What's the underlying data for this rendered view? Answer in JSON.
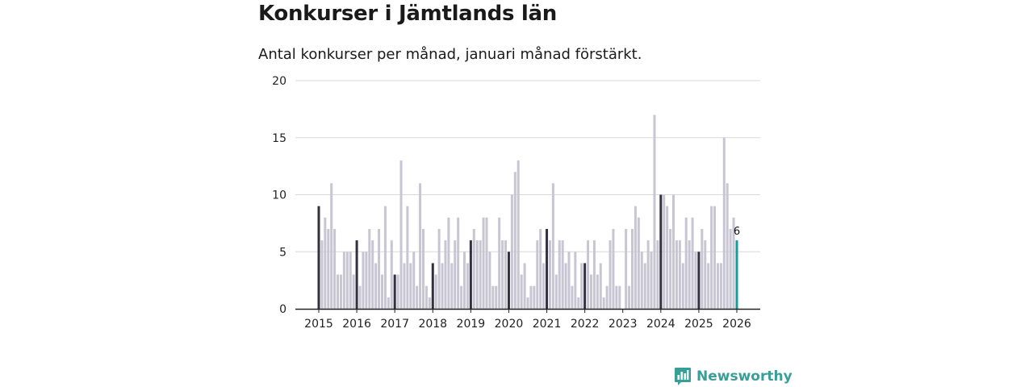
{
  "title": "Konkurser i Jämtlands län",
  "subtitle": "Antal konkurser per månad, januari månad förstärkt.",
  "brand": {
    "name": "Newsworthy",
    "color": "#3a9e98",
    "icon": "bar-chart-icon"
  },
  "colors": {
    "bar": "#c8c6d2",
    "january": "#33303f",
    "latest": "#169e95",
    "grid": "#d9d9d9",
    "axis": "#222222"
  },
  "chart_data": {
    "type": "bar",
    "title": "Konkurser i Jämtlands län",
    "subtitle": "Antal konkurser per månad, januari månad förstärkt.",
    "xlabel": "",
    "ylabel": "",
    "ylim": [
      0,
      20
    ],
    "yticks": [
      0,
      5,
      10,
      15,
      20
    ],
    "xticks": [
      "2015",
      "2016",
      "2017",
      "2018",
      "2019",
      "2020",
      "2021",
      "2022",
      "2023",
      "2024",
      "2025",
      "2026"
    ],
    "start": "2015-01",
    "highlight": "januari",
    "values": [
      9,
      6,
      8,
      7,
      11,
      7,
      3,
      3,
      5,
      5,
      5,
      3,
      6,
      2,
      5,
      5,
      7,
      6,
      4,
      7,
      3,
      9,
      1,
      6,
      3,
      3,
      13,
      4,
      9,
      4,
      5,
      2,
      11,
      7,
      2,
      1,
      4,
      3,
      7,
      4,
      6,
      8,
      4,
      6,
      8,
      2,
      5,
      4,
      6,
      7,
      6,
      6,
      8,
      8,
      5,
      2,
      2,
      8,
      6,
      6,
      5,
      10,
      12,
      13,
      3,
      4,
      1,
      2,
      2,
      6,
      7,
      4,
      7,
      6,
      11,
      3,
      6,
      6,
      4,
      5,
      2,
      5,
      1,
      4,
      4,
      6,
      3,
      6,
      3,
      4,
      1,
      2,
      6,
      7,
      2,
      2,
      0,
      7,
      2,
      7,
      9,
      8,
      5,
      4,
      6,
      5,
      17,
      6,
      10,
      10,
      9,
      7,
      10,
      6,
      6,
      4,
      8,
      6,
      8,
      5,
      5,
      7,
      6,
      4,
      9,
      9,
      4,
      4,
      15,
      11,
      7,
      8,
      6
    ],
    "last_label": "6"
  }
}
